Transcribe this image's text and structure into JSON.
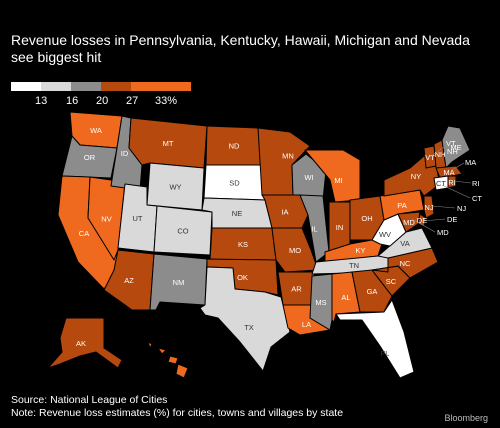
{
  "title": "Revenue losses in Pennsylvania, Kentucky, Hawaii, Michigan and Nevada see biggest hit",
  "legend": {
    "ticks": [
      "13",
      "16",
      "20",
      "27",
      "33%"
    ],
    "colors": [
      "#ffffff",
      "#d9d9d9",
      "#8c8c8c",
      "#b5490e",
      "#ef6a1f"
    ]
  },
  "colors": {
    "background": "#000000",
    "border": "#000000",
    "label_on_dark": "#ffffff",
    "label_on_light": "#333333"
  },
  "map": {
    "states": {
      "WA": {
        "fill": "#ef6a1f",
        "label": "WA"
      },
      "OR": {
        "fill": "#8c8c8c",
        "label": "OR"
      },
      "CA": {
        "fill": "#ef6a1f",
        "label": "CA"
      },
      "NV": {
        "fill": "#ef6a1f",
        "label": "NV"
      },
      "ID": {
        "fill": "#8c8c8c",
        "label": "ID"
      },
      "MT": {
        "fill": "#b5490e",
        "label": "MT"
      },
      "WY": {
        "fill": "#d9d9d9",
        "label": "WY"
      },
      "UT": {
        "fill": "#d9d9d9",
        "label": "UT"
      },
      "AZ": {
        "fill": "#b5490e",
        "label": "AZ"
      },
      "CO": {
        "fill": "#d9d9d9",
        "label": "CO"
      },
      "NM": {
        "fill": "#8c8c8c",
        "label": "NM"
      },
      "ND": {
        "fill": "#b5490e",
        "label": "ND"
      },
      "SD": {
        "fill": "#ffffff",
        "label": "SD"
      },
      "NE": {
        "fill": "#d9d9d9",
        "label": "NE"
      },
      "KS": {
        "fill": "#b5490e",
        "label": "KS"
      },
      "OK": {
        "fill": "#b5490e",
        "label": "OK"
      },
      "TX": {
        "fill": "#d9d9d9",
        "label": "TX"
      },
      "MN": {
        "fill": "#b5490e",
        "label": "MN"
      },
      "IA": {
        "fill": "#b5490e",
        "label": "IA"
      },
      "MO": {
        "fill": "#b5490e",
        "label": "MO"
      },
      "AR": {
        "fill": "#b5490e",
        "label": "AR"
      },
      "LA": {
        "fill": "#ef6a1f",
        "label": "LA"
      },
      "WI": {
        "fill": "#8c8c8c",
        "label": "WI"
      },
      "IL": {
        "fill": "#8c8c8c",
        "label": "IL"
      },
      "MI": {
        "fill": "#ef6a1f",
        "label": "MI"
      },
      "IN": {
        "fill": "#b5490e",
        "label": "IN"
      },
      "OH": {
        "fill": "#b5490e",
        "label": "OH"
      },
      "KY": {
        "fill": "#ef6a1f",
        "label": "KY"
      },
      "TN": {
        "fill": "#d9d9d9",
        "label": "TN"
      },
      "MS": {
        "fill": "#8c8c8c",
        "label": "MS"
      },
      "AL": {
        "fill": "#ef6a1f",
        "label": "AL"
      },
      "GA": {
        "fill": "#b5490e",
        "label": "GA"
      },
      "FL": {
        "fill": "#ffffff",
        "label": "FL"
      },
      "SC": {
        "fill": "#b5490e",
        "label": "SC"
      },
      "NC": {
        "fill": "#b5490e",
        "label": "NC"
      },
      "VA": {
        "fill": "#d9d9d9",
        "label": "VA"
      },
      "WV": {
        "fill": "#ffffff",
        "label": "WV"
      },
      "PA": {
        "fill": "#ef6a1f",
        "label": "PA"
      },
      "NY": {
        "fill": "#b5490e",
        "label": "NY"
      },
      "VT": {
        "fill": "#b5490e",
        "label": "VT"
      },
      "NH": {
        "fill": "#b5490e",
        "label": "NH"
      },
      "ME": {
        "fill": "#8c8c8c",
        "label": "ME"
      },
      "MA": {
        "fill": "#b5490e",
        "label": "MA"
      },
      "CT": {
        "fill": "#ffffff",
        "label": "CT"
      },
      "RI": {
        "fill": "#b5490e",
        "label": "RI"
      },
      "NJ": {
        "fill": "#b5490e",
        "label": "NJ"
      },
      "DE": {
        "fill": "#b5490e",
        "label": "DE"
      },
      "MD": {
        "fill": "#b5490e",
        "label": "MD"
      },
      "AK": {
        "fill": "#b5490e",
        "label": "AK"
      },
      "HI": {
        "fill": "#ef6a1f",
        "label": ""
      }
    },
    "callouts": {
      "VT": "VT",
      "NH": "NH",
      "MA": "MA",
      "RI": "RI",
      "CT": "CT",
      "NJ": "NJ",
      "DE": "DE",
      "MD": "MD"
    }
  },
  "source": "Source: National League of Cities",
  "note": "Note: Revenue loss estimates (%) for cities, towns and villages by state",
  "logo": "Bloomberg"
}
